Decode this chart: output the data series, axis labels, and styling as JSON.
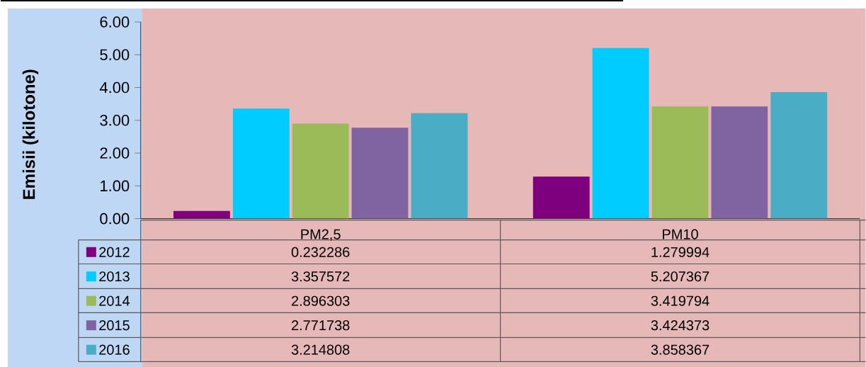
{
  "chart_data": {
    "type": "bar",
    "ylabel": "Emisii (kilotone)",
    "categories": [
      "PM2,5",
      "PM10"
    ],
    "series": [
      {
        "name": "2012",
        "color": "#7f007f",
        "values": [
          0.232286,
          1.279994
        ]
      },
      {
        "name": "2013",
        "color": "#00ccff",
        "values": [
          3.357572,
          5.207367
        ]
      },
      {
        "name": "2014",
        "color": "#9bbb59",
        "values": [
          2.896303,
          3.419794
        ]
      },
      {
        "name": "2015",
        "color": "#8064a2",
        "values": [
          2.771738,
          3.424373
        ]
      },
      {
        "name": "2016",
        "color": "#4bacc6",
        "values": [
          3.214808,
          3.858367
        ]
      }
    ],
    "ylim": [
      0,
      6
    ],
    "yticks": [
      {
        "value": 0,
        "label": "0.00"
      },
      {
        "value": 1,
        "label": "1.00"
      },
      {
        "value": 2,
        "label": "2.00"
      },
      {
        "value": 3,
        "label": "3.00"
      },
      {
        "value": 4,
        "label": "4.00"
      },
      {
        "value": 5,
        "label": "5.00"
      },
      {
        "value": 6,
        "label": "6.00"
      }
    ],
    "data_labels": true,
    "legend": "bottom"
  }
}
